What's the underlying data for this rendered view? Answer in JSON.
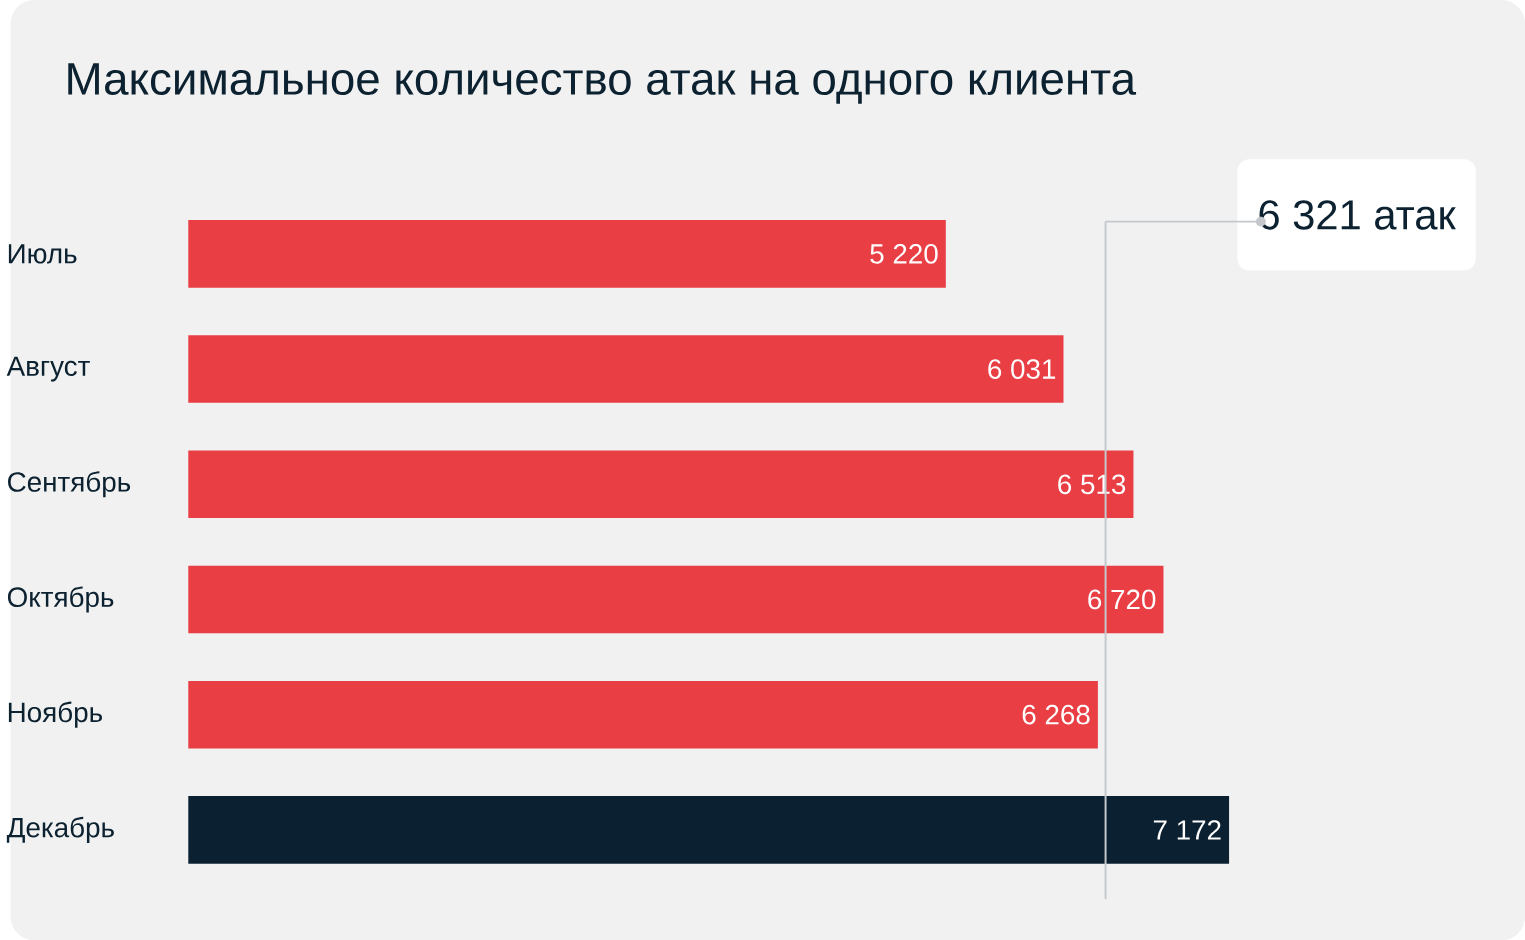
{
  "chart_data": {
    "type": "bar",
    "orientation": "horizontal",
    "title": "Максимальное количество атак на одного клиента",
    "categories": [
      "Июль",
      "Август",
      "Сентябрь",
      "Октябрь",
      "Ноябрь",
      "Декабрь"
    ],
    "values": [
      5220,
      6031,
      6513,
      6720,
      6268,
      7172
    ],
    "value_labels": [
      "5 220",
      "6 031",
      "6 513",
      "6 720",
      "6 268",
      "7 172"
    ],
    "colors": [
      "#e83e44",
      "#e83e44",
      "#e83e44",
      "#e83e44",
      "#e83e44",
      "#0b2030"
    ],
    "ref_lines": [
      {
        "axis": "x",
        "value": 6321,
        "label": "6 321 атак",
        "color": "#c4c8cc"
      }
    ],
    "tick_labels": "y"
  }
}
